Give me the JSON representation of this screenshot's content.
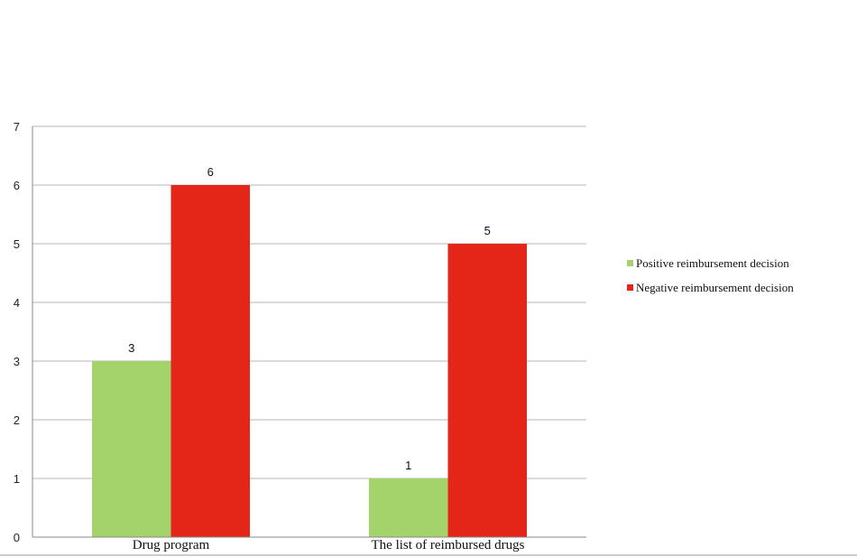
{
  "chart_data": {
    "type": "bar",
    "categories": [
      "Drug program",
      "The list of reimbursed drugs"
    ],
    "series": [
      {
        "name": "Positive reimbursement decision",
        "values": [
          3,
          1
        ],
        "color": "#a3d36a"
      },
      {
        "name": "Negative reimbursement decision",
        "values": [
          6,
          5
        ],
        "color": "#e32618"
      }
    ],
    "ylim": [
      0,
      7
    ],
    "yticks": [
      "0",
      "1",
      "2",
      "3",
      "4",
      "5",
      "6",
      "7"
    ],
    "grid": true,
    "legend_position": "right",
    "data_labels": true
  }
}
